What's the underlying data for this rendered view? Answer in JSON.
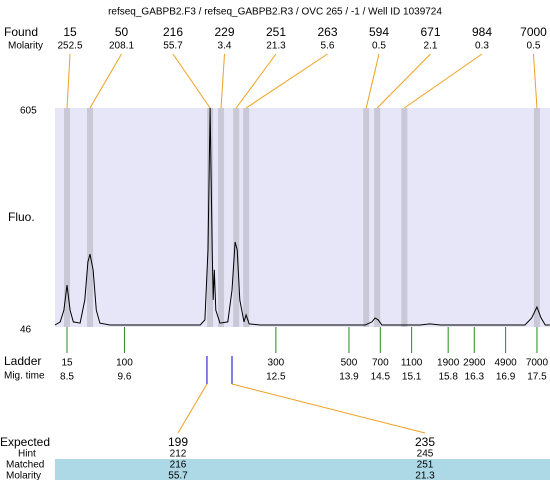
{
  "header": {
    "title": "refseq_GABPB2.F3 / refseq_GABPB2.R3 / OVC 265 / -1 / Well ID 1039724"
  },
  "chart_data": {
    "type": "electropherogram",
    "y_label": "Fluo.",
    "ylim": [
      46,
      605
    ],
    "yticks": [
      605,
      46
    ],
    "xlim": [
      8.27,
      17.75
    ],
    "trace": {
      "x": [
        8.27,
        8.37,
        8.44,
        8.5,
        8.56,
        8.62,
        8.75,
        8.84,
        8.9,
        8.94,
        9.0,
        9.06,
        9.13,
        9.32,
        11.05,
        11.14,
        11.2,
        11.24,
        11.28,
        11.3,
        11.32,
        11.35,
        11.43,
        11.58,
        11.66,
        11.72,
        11.76,
        11.81,
        11.89,
        11.93,
        11.99,
        12.2,
        14.21,
        14.34,
        14.4,
        14.46,
        14.53,
        15.26,
        15.45,
        15.65,
        17.27,
        17.4,
        17.5,
        17.58,
        17.66,
        17.75
      ],
      "values": [
        51,
        59,
        89,
        153,
        89,
        59,
        56,
        115,
        212,
        232,
        192,
        89,
        56,
        51,
        51,
        64,
        243,
        605,
        243,
        115,
        192,
        89,
        56,
        59,
        140,
        263,
        243,
        115,
        59,
        77,
        54,
        51,
        51,
        59,
        69,
        64,
        51,
        51,
        54,
        51,
        51,
        69,
        97,
        69,
        51,
        51
      ]
    },
    "found": {
      "label": "Found",
      "molarity_label": "Molarity",
      "sizes": [
        15,
        50,
        216,
        229,
        251,
        263,
        594,
        671,
        984,
        7000
      ],
      "molarity": [
        252.5,
        208.1,
        55.7,
        3.4,
        21.3,
        5.6,
        0.5,
        2.1,
        0.3,
        0.5
      ],
      "x": [
        8.5,
        8.94,
        11.24,
        11.45,
        11.74,
        11.93,
        14.23,
        14.44,
        14.96,
        17.5
      ]
    },
    "ladder": {
      "label": "Ladder",
      "time_label": "Mig. time",
      "sizes": [
        15,
        100,
        300,
        500,
        700,
        1100,
        1900,
        2900,
        4900,
        7000
      ],
      "times": [
        8.5,
        9.6,
        12.5,
        13.9,
        14.5,
        15.1,
        15.8,
        16.3,
        16.9,
        17.5
      ]
    },
    "expected": {
      "labels": [
        "Expected",
        "Hint",
        "Matched",
        "Molarity"
      ],
      "x": [
        11.18,
        11.66
      ],
      "expected": [
        199,
        235
      ],
      "hint": [
        212,
        245
      ],
      "matched": [
        216,
        251
      ],
      "molarity": [
        55.7,
        21.3
      ]
    }
  }
}
